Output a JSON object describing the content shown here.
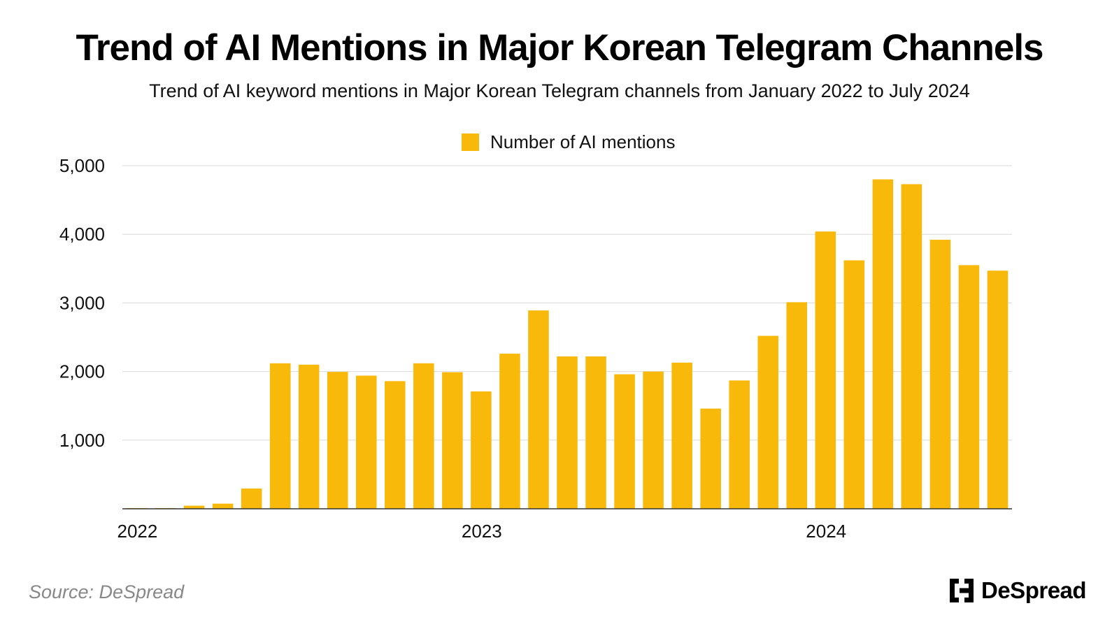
{
  "title": "Trend of AI Mentions in Major Korean Telegram Channels",
  "subtitle": "Trend of AI keyword mentions in Major Korean Telegram channels from January 2022 to July 2024",
  "source": "Source: DeSpread",
  "brand": "DeSpread",
  "colors": {
    "bar": "#F9B90A",
    "grid": "#D9D9D9",
    "axis": "#333333"
  },
  "chart_data": {
    "type": "bar",
    "title": "Trend of AI Mentions in Major Korean Telegram Channels",
    "xlabel": "",
    "ylabel": "",
    "ylim": [
      0,
      5000
    ],
    "yticks": [
      {
        "value": 1000,
        "label": "1,000"
      },
      {
        "value": 2000,
        "label": "2,000"
      },
      {
        "value": 3000,
        "label": "3,000"
      },
      {
        "value": 4000,
        "label": "4,000"
      },
      {
        "value": 5000,
        "label": "5,000"
      }
    ],
    "xticks": [
      {
        "index": 0,
        "label": "2022"
      },
      {
        "index": 12,
        "label": "2023"
      },
      {
        "index": 24,
        "label": "2024"
      }
    ],
    "legend": {
      "position": "top-center",
      "entries": [
        "Number of AI mentions"
      ]
    },
    "grid": true,
    "series": [
      {
        "name": "Number of AI mentions",
        "categories": [
          "2022-01",
          "2022-02",
          "2022-03",
          "2022-04",
          "2022-05",
          "2022-06",
          "2022-07",
          "2022-08",
          "2022-09",
          "2022-10",
          "2022-11",
          "2022-12",
          "2023-01",
          "2023-02",
          "2023-03",
          "2023-04",
          "2023-05",
          "2023-06",
          "2023-07",
          "2023-08",
          "2023-09",
          "2023-10",
          "2023-11",
          "2023-12",
          "2024-01",
          "2024-02",
          "2024-03",
          "2024-04",
          "2024-05",
          "2024-06",
          "2024-07"
        ],
        "values": [
          5,
          10,
          45,
          75,
          295,
          2120,
          2100,
          1995,
          1940,
          1860,
          2120,
          1990,
          1710,
          2260,
          2890,
          2220,
          2220,
          1960,
          2000,
          2130,
          1460,
          1870,
          2520,
          3010,
          4040,
          3620,
          4800,
          4730,
          3920,
          3550,
          3470
        ]
      }
    ]
  }
}
